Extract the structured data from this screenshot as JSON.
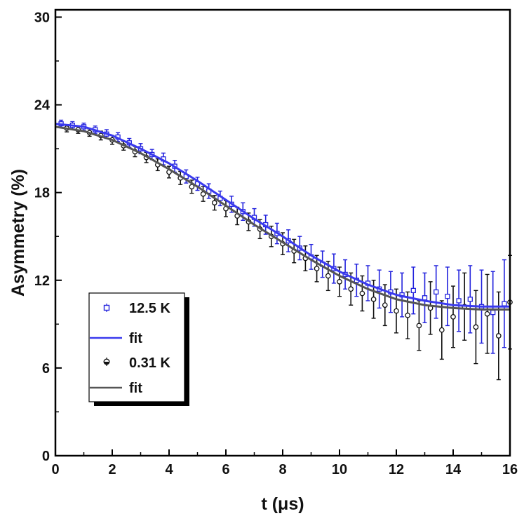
{
  "chart_data": {
    "type": "scatter",
    "xlabel": "t (μs)",
    "ylabel": "Asymmetry (%)",
    "xlim": [
      0,
      16
    ],
    "ylim": [
      0,
      30.5
    ],
    "xticks": [
      0,
      2,
      4,
      6,
      8,
      10,
      12,
      14,
      16
    ],
    "yticks": [
      0,
      6,
      12,
      18,
      24,
      30
    ],
    "grid": false,
    "legend_placement": "bottom-left",
    "series": [
      {
        "name": "12.5 K",
        "kind": "points-with-errorbars",
        "color": "#2222dd",
        "x": [
          0.2,
          0.6,
          1.0,
          1.4,
          1.8,
          2.2,
          2.6,
          3.0,
          3.4,
          3.8,
          4.2,
          4.6,
          5.0,
          5.4,
          5.8,
          6.2,
          6.6,
          7.0,
          7.4,
          7.8,
          8.2,
          8.6,
          9.0,
          9.4,
          9.8,
          10.2,
          10.6,
          11.0,
          11.4,
          11.8,
          12.2,
          12.6,
          13.0,
          13.4,
          13.8,
          14.2,
          14.6,
          15.0,
          15.4,
          15.8
        ],
        "y": [
          22.7,
          22.6,
          22.5,
          22.3,
          22.0,
          21.8,
          21.4,
          21.0,
          20.6,
          20.3,
          19.8,
          19.1,
          18.6,
          18.1,
          17.6,
          17.2,
          16.7,
          16.3,
          15.8,
          15.2,
          14.7,
          14.2,
          13.6,
          13.1,
          12.8,
          12.4,
          12.0,
          11.8,
          11.4,
          11.2,
          11.0,
          11.3,
          10.8,
          11.2,
          10.9,
          10.6,
          10.7,
          10.2,
          9.8,
          10.4
        ],
        "error": [
          0.25,
          0.25,
          0.25,
          0.25,
          0.3,
          0.3,
          0.3,
          0.35,
          0.35,
          0.4,
          0.4,
          0.45,
          0.45,
          0.5,
          0.5,
          0.55,
          0.6,
          0.6,
          0.65,
          0.7,
          0.75,
          0.8,
          0.85,
          0.9,
          1.0,
          1.0,
          1.1,
          1.2,
          1.3,
          1.4,
          1.5,
          1.6,
          1.7,
          1.8,
          2.0,
          2.1,
          2.3,
          2.5,
          2.8,
          3.0
        ]
      },
      {
        "name": "fit",
        "kind": "line",
        "color": "#3a3aee",
        "x": [
          0,
          1,
          2,
          3,
          4,
          5,
          6,
          7,
          8,
          9,
          10,
          11,
          12,
          13,
          14,
          15,
          16
        ],
        "y": [
          22.7,
          22.5,
          21.9,
          21.0,
          20.0,
          18.8,
          17.5,
          16.2,
          15.0,
          13.7,
          12.6,
          11.7,
          11.0,
          10.6,
          10.3,
          10.2,
          10.2
        ]
      },
      {
        "name": "0.31 K",
        "kind": "points-with-errorbars",
        "color": "#111111",
        "x": [
          0.4,
          0.8,
          1.2,
          1.6,
          2.0,
          2.4,
          2.8,
          3.2,
          3.6,
          4.0,
          4.4,
          4.8,
          5.2,
          5.6,
          6.0,
          6.4,
          6.8,
          7.2,
          7.6,
          8.0,
          8.4,
          8.8,
          9.2,
          9.6,
          10.0,
          10.4,
          10.8,
          11.2,
          11.6,
          12.0,
          12.4,
          12.8,
          13.2,
          13.6,
          14.0,
          14.4,
          14.8,
          15.2,
          15.6,
          16.0
        ],
        "y": [
          22.4,
          22.3,
          22.1,
          21.9,
          21.6,
          21.2,
          20.8,
          20.4,
          19.9,
          19.4,
          19.0,
          18.4,
          17.9,
          17.3,
          16.9,
          16.4,
          16.0,
          15.5,
          15.0,
          14.5,
          14.0,
          13.5,
          12.8,
          12.3,
          11.9,
          11.4,
          11.1,
          10.7,
          10.3,
          9.9,
          9.6,
          8.9,
          10.1,
          8.6,
          9.5,
          10.2,
          8.8,
          9.7,
          8.2,
          10.5
        ],
        "error": [
          0.25,
          0.25,
          0.25,
          0.3,
          0.3,
          0.3,
          0.35,
          0.35,
          0.4,
          0.4,
          0.45,
          0.45,
          0.5,
          0.5,
          0.55,
          0.6,
          0.6,
          0.65,
          0.7,
          0.75,
          0.8,
          0.85,
          0.9,
          1.0,
          1.0,
          1.1,
          1.2,
          1.3,
          1.4,
          1.5,
          1.6,
          1.7,
          1.8,
          2.0,
          2.1,
          2.3,
          2.5,
          2.7,
          3.0,
          3.2
        ]
      },
      {
        "name": "fit",
        "kind": "line",
        "color": "#555555",
        "x": [
          0,
          1,
          2,
          3,
          4,
          5,
          6,
          7,
          8,
          9,
          10,
          11,
          12,
          13,
          14,
          15,
          16
        ],
        "y": [
          22.5,
          22.2,
          21.6,
          20.7,
          19.6,
          18.4,
          17.1,
          15.8,
          14.6,
          13.4,
          12.3,
          11.4,
          10.7,
          10.3,
          10.1,
          10.0,
          10.0
        ]
      }
    ]
  }
}
